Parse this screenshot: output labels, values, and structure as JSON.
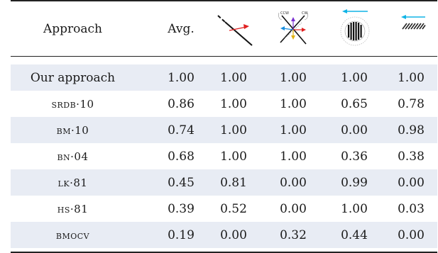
{
  "table": {
    "headers": [
      "Approach",
      "Avg."
    ],
    "header_icons": [
      "diagonal-edge-with-red-arrow-icon",
      "crossing-edges-with-colored-arrows-icon",
      "concentric-circle-stripes-with-arrow-icon",
      "hatched-bar-with-arrow-icon"
    ],
    "icon_labels": {
      "ccw": "CCW",
      "cw": "CW"
    },
    "rows": [
      {
        "name": "Our approach",
        "small_caps": false,
        "shaded": true,
        "values": [
          "1.00",
          "1.00",
          "1.00",
          "1.00",
          "1.00"
        ]
      },
      {
        "name": "SRDB·10",
        "small_caps": true,
        "shaded": false,
        "values": [
          "0.86",
          "1.00",
          "1.00",
          "0.65",
          "0.78"
        ]
      },
      {
        "name": "BM·10",
        "small_caps": true,
        "shaded": true,
        "values": [
          "0.74",
          "1.00",
          "1.00",
          "0.00",
          "0.98"
        ]
      },
      {
        "name": "BN·04",
        "small_caps": true,
        "shaded": false,
        "values": [
          "0.68",
          "1.00",
          "1.00",
          "0.36",
          "0.38"
        ]
      },
      {
        "name": "LK·81",
        "small_caps": true,
        "shaded": true,
        "values": [
          "0.45",
          "0.81",
          "0.00",
          "0.99",
          "0.00"
        ]
      },
      {
        "name": "HS·81",
        "small_caps": true,
        "shaded": false,
        "values": [
          "0.39",
          "0.52",
          "0.00",
          "1.00",
          "0.03"
        ]
      },
      {
        "name": "BMOCV",
        "small_caps": true,
        "shaded": true,
        "values": [
          "0.19",
          "0.00",
          "0.32",
          "0.44",
          "0.00"
        ]
      }
    ]
  },
  "colors": {
    "shade": "#e8ecf4",
    "rule": "#222222",
    "red": "#e02020",
    "cyan": "#10b4e6"
  }
}
